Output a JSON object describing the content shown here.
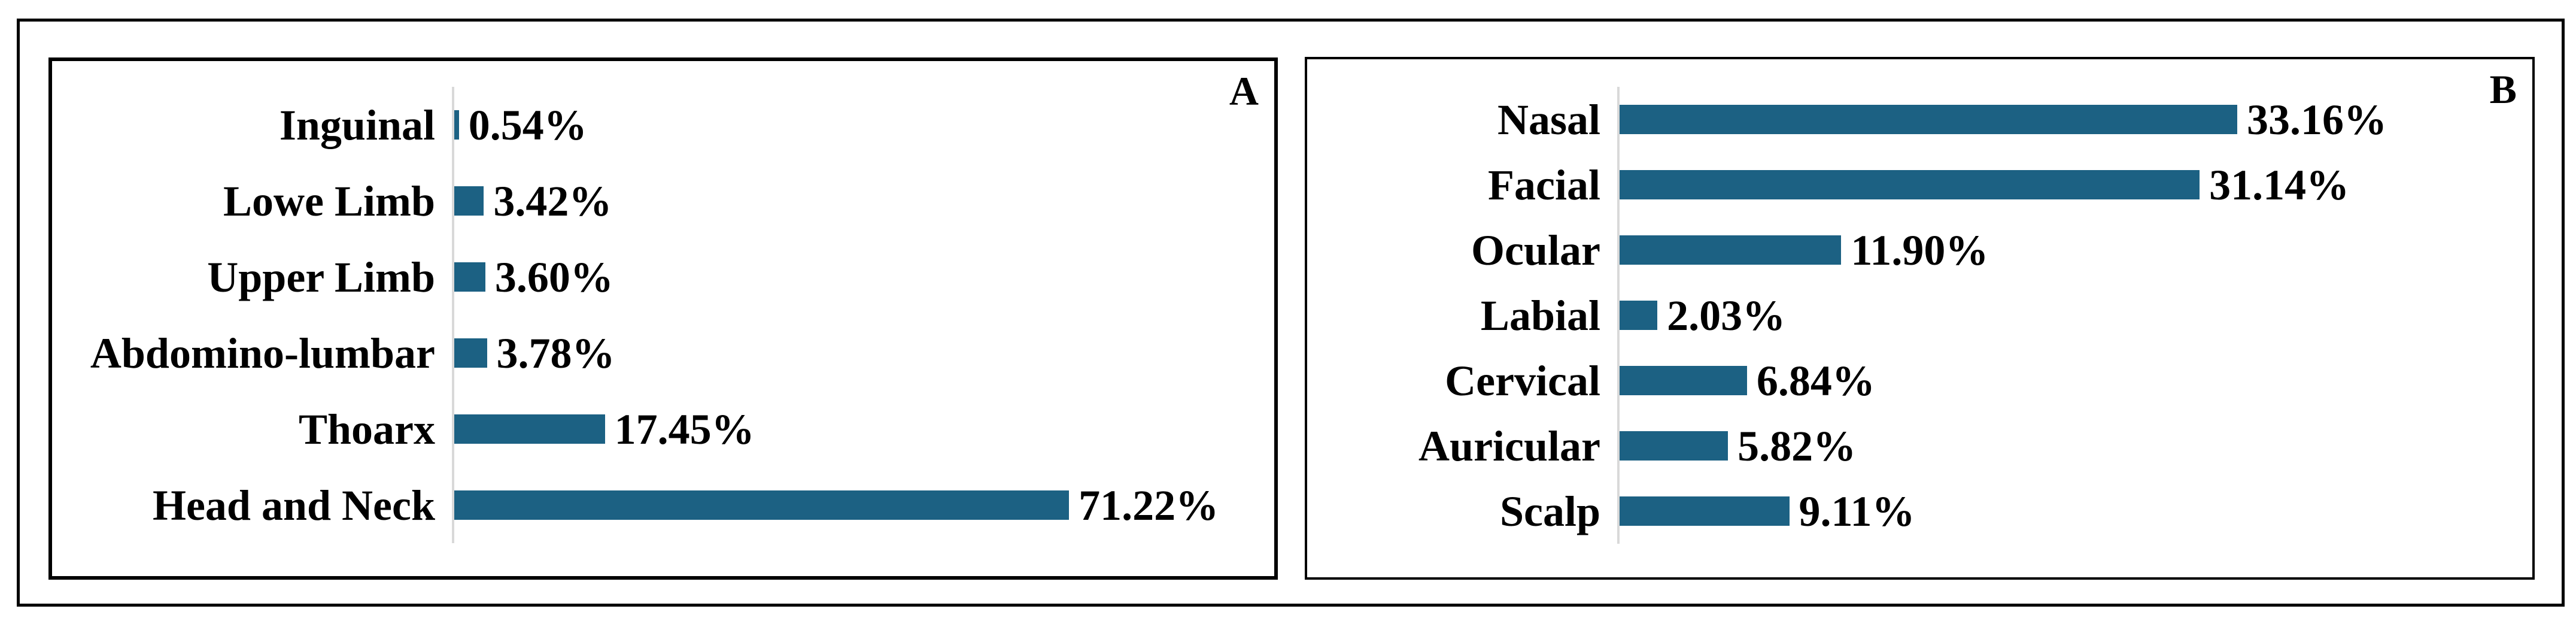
{
  "figure": {
    "background_color": "#ffffff",
    "frame_border_color": "#000000"
  },
  "chart_data": [
    {
      "panel_label": "A",
      "type": "bar",
      "orientation": "horizontal",
      "categories": [
        "Inguinal",
        "Lowe Limb",
        "Upper Limb",
        "Abdomino-lumbar",
        "Thoarx",
        "Head and Neck"
      ],
      "values": [
        0.54,
        3.42,
        3.6,
        3.78,
        17.45,
        71.22
      ],
      "data_labels": [
        "0.54%",
        "3.42%",
        "3.60%",
        "3.78%",
        "17.45%",
        "71.22%"
      ],
      "title": "",
      "xlabel": "",
      "ylabel": "",
      "xlim": [
        0,
        95
      ],
      "grid": false,
      "legend": false,
      "bar_color": "#1c6183",
      "axis_line_color": "#d9d9d9"
    },
    {
      "panel_label": "B",
      "type": "bar",
      "orientation": "horizontal",
      "categories": [
        "Nasal",
        "Facial",
        "Ocular",
        "Labial",
        "Cervical",
        "Auricular",
        "Scalp"
      ],
      "values": [
        33.16,
        31.14,
        11.9,
        2.03,
        6.84,
        5.82,
        9.11
      ],
      "data_labels": [
        "33.16%",
        "31.14%",
        "11.90%",
        "2.03%",
        "6.84%",
        "5.82%",
        "9.11%"
      ],
      "title": "",
      "xlabel": "",
      "ylabel": "",
      "xlim": [
        0,
        49
      ],
      "grid": false,
      "legend": false,
      "bar_color": "#1c6183",
      "axis_line_color": "#d9d9d9"
    }
  ]
}
